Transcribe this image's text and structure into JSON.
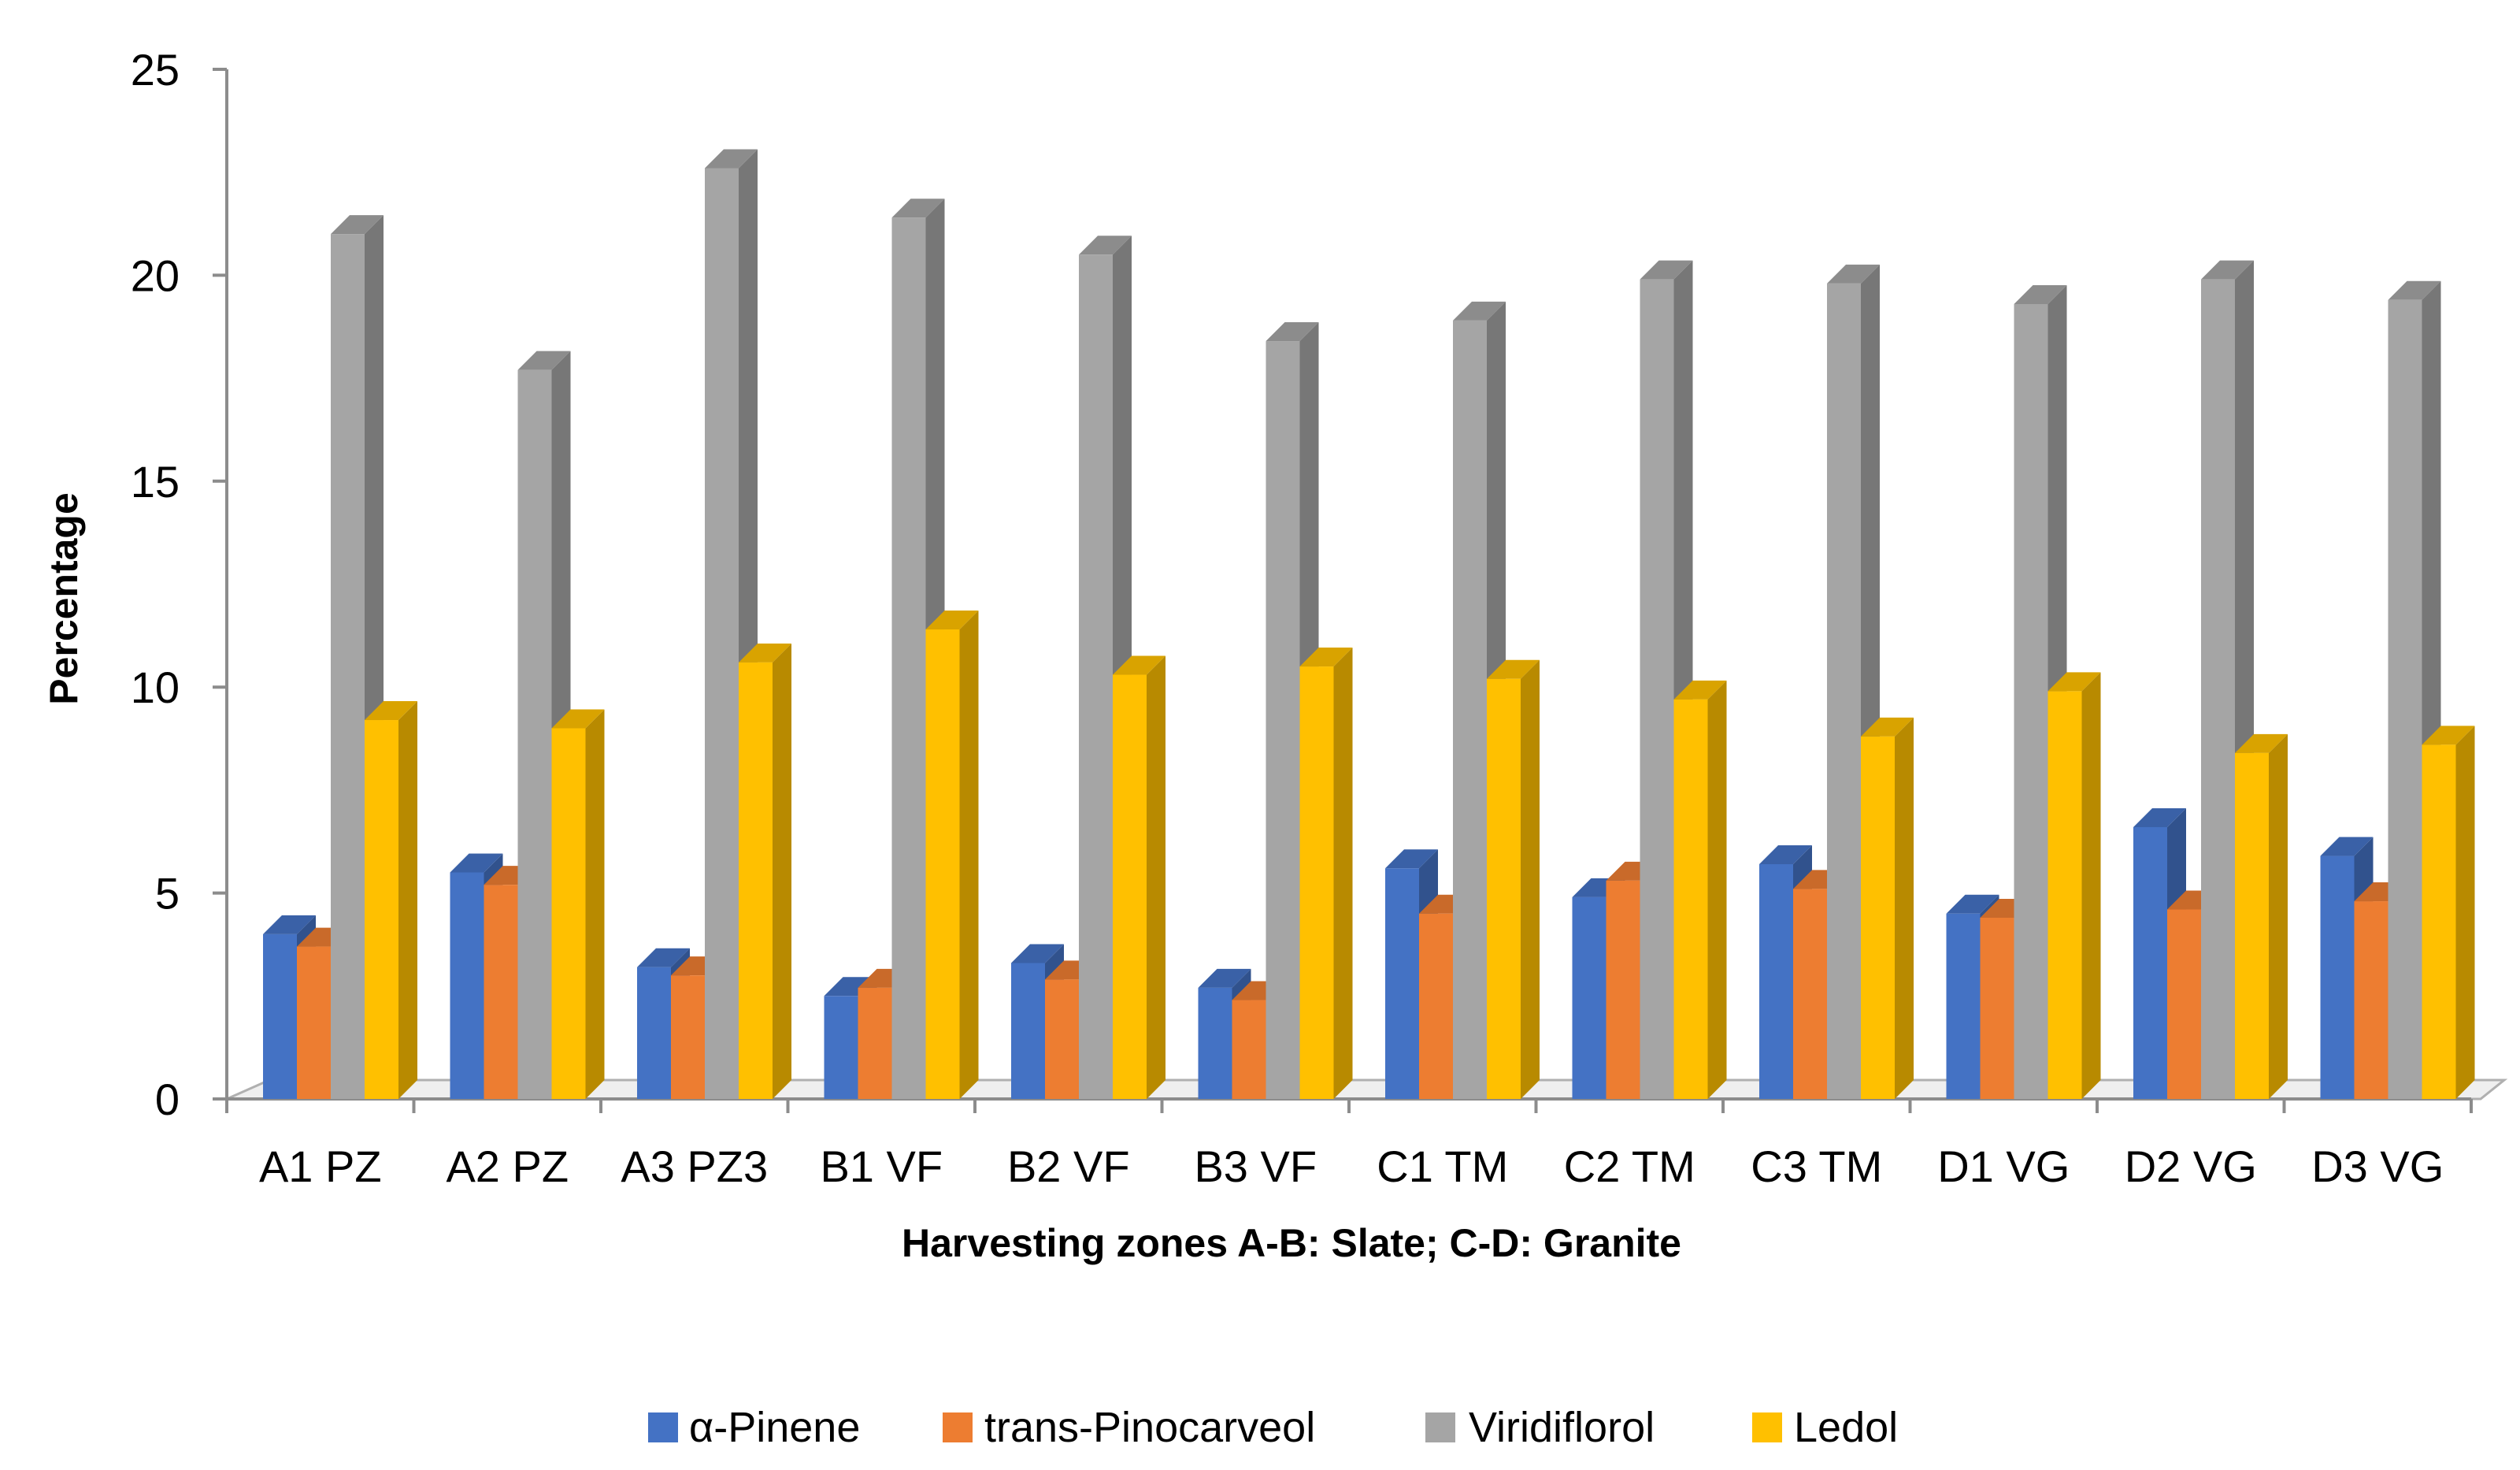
{
  "chart_data": {
    "type": "bar",
    "title": "",
    "xlabel": "Harvesting zones A-B: Slate; C-D: Granite",
    "ylabel": "Percentage",
    "ylim": [
      0,
      25
    ],
    "yticks": [
      "0",
      "5",
      "10",
      "15",
      "20",
      "25"
    ],
    "categories": [
      "A1 PZ",
      "A2 PZ",
      "A3 PZ3",
      "B1 VF",
      "B2 VF",
      "B3 VF",
      "C1 TM",
      "C2 TM",
      "C3 TM",
      "D1 VG",
      "D2 VG",
      "D3 VG"
    ],
    "series": [
      {
        "name": "α-Pinene",
        "color": "#4472C4",
        "values": [
          4.0,
          5.5,
          3.2,
          2.5,
          3.3,
          2.7,
          5.6,
          4.9,
          5.7,
          4.5,
          6.6,
          5.9
        ]
      },
      {
        "name": "trans-Pinocarveol",
        "color": "#ED7D31",
        "values": [
          3.7,
          5.2,
          3.0,
          2.7,
          2.9,
          2.4,
          4.5,
          5.3,
          5.1,
          4.4,
          4.6,
          4.8
        ]
      },
      {
        "name": "Viridiflorol",
        "color": "#A5A5A5",
        "values": [
          21.0,
          17.7,
          22.6,
          21.4,
          20.5,
          18.4,
          18.9,
          19.9,
          19.8,
          19.3,
          19.9,
          19.4
        ]
      },
      {
        "name": "Ledol",
        "color": "#FFC000",
        "values": [
          9.2,
          9.0,
          10.6,
          11.4,
          10.3,
          10.5,
          10.2,
          9.7,
          8.8,
          9.9,
          8.4,
          8.6
        ]
      }
    ],
    "grid": false,
    "legend": "bottom-center"
  }
}
